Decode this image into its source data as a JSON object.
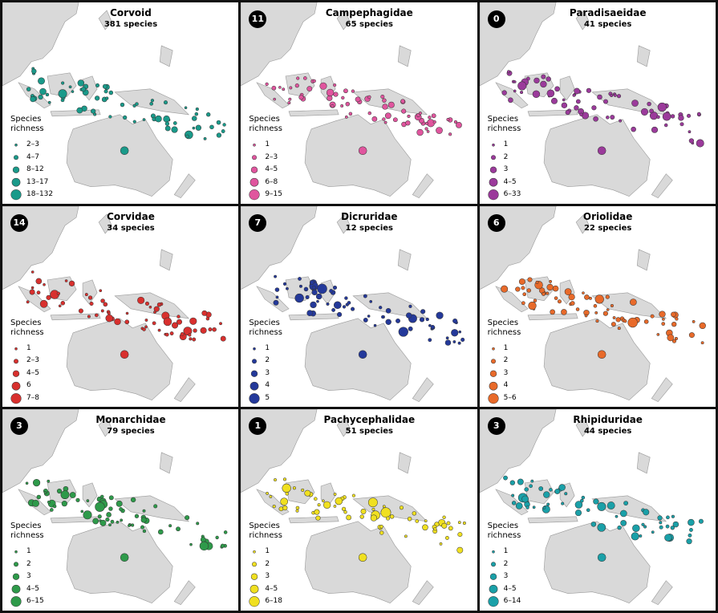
{
  "panels": [
    {
      "badge": null,
      "title": "Corvoid",
      "subtitle": "381 species",
      "legend_title": "Species richness",
      "color": "#1a9a8a",
      "legend": [
        "2–3",
        "4–7",
        "8–12",
        "13–17",
        "18–132"
      ]
    },
    {
      "badge": 11,
      "title": "Campephagidae",
      "subtitle": "65 species",
      "legend_title": "Species richness",
      "color": "#e0559e",
      "legend": [
        "1",
        "2–3",
        "4–5",
        "6–8",
        "9–15"
      ]
    },
    {
      "badge": 0,
      "title": "Paradisaeidae",
      "subtitle": "41 species",
      "legend_title": "Species richness",
      "color": "#9b3a9b",
      "legend": [
        "1",
        "2",
        "3",
        "4–5",
        "6–33"
      ]
    },
    {
      "badge": 14,
      "title": "Corvidae",
      "subtitle": "34 species",
      "legend_title": "Species richness",
      "color": "#d8302e",
      "legend": [
        "1",
        "2–3",
        "4–5",
        "6",
        "7–8"
      ]
    },
    {
      "badge": 7,
      "title": "Dicruridae",
      "subtitle": "12 species",
      "legend_title": "Species richness",
      "color": "#24399a",
      "legend": [
        "1",
        "2",
        "3",
        "4",
        "5"
      ]
    },
    {
      "badge": 6,
      "title": "Oriolidae",
      "subtitle": "22 species",
      "legend_title": "Species richness",
      "color": "#e86a2a",
      "legend": [
        "1",
        "2",
        "3",
        "4",
        "5–6"
      ]
    },
    {
      "badge": 3,
      "title": "Monarchidae",
      "subtitle": "79 species",
      "legend_title": "Species richness",
      "color": "#2e9a4a",
      "legend": [
        "1",
        "2",
        "3",
        "4–5",
        "6–15"
      ]
    },
    {
      "badge": 1,
      "title": "Pachycephalidae",
      "subtitle": "51 species",
      "legend_title": "Species richness",
      "color": "#f0e020",
      "legend": [
        "1",
        "2",
        "3",
        "4–5",
        "6–18"
      ]
    },
    {
      "badge": 3,
      "title": "Rhipiduridae",
      "subtitle": "44 species",
      "legend_title": "Species richness",
      "color": "#1aa0a8",
      "legend": [
        "1",
        "2",
        "3",
        "4–5",
        "6–14"
      ]
    }
  ]
}
